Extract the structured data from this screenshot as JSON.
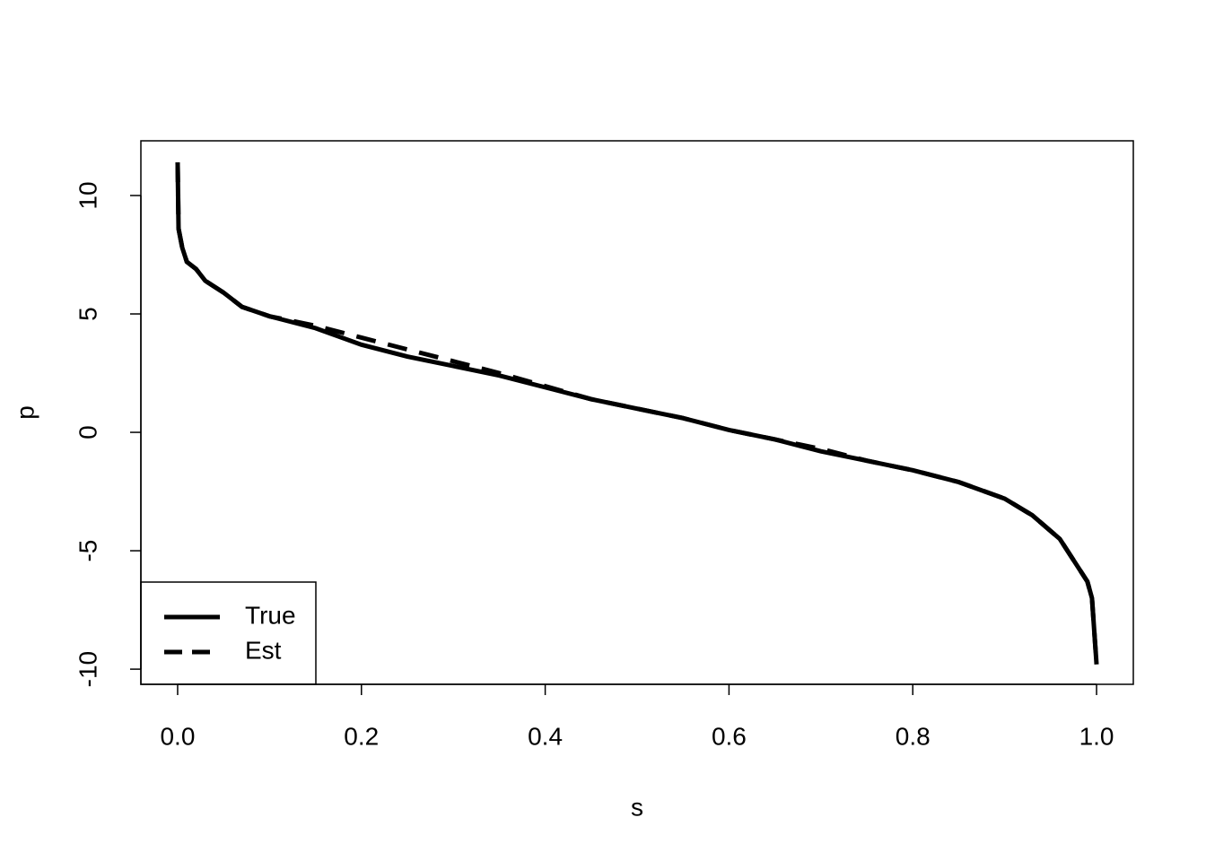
{
  "chart_data": {
    "type": "line",
    "xlabel": "s",
    "ylabel": "p",
    "x": [
      0,
      0.001,
      0.005,
      0.01,
      0.02,
      0.03,
      0.05,
      0.07,
      0.1,
      0.15,
      0.2,
      0.25,
      0.3,
      0.35,
      0.4,
      0.45,
      0.5,
      0.55,
      0.6,
      0.65,
      0.7,
      0.75,
      0.8,
      0.85,
      0.9,
      0.93,
      0.96,
      0.98,
      0.99,
      0.995,
      1.0
    ],
    "series": [
      {
        "name": "True",
        "color": "#000000",
        "dash": "solid",
        "values": [
          11.4,
          8.6,
          7.8,
          7.2,
          6.9,
          6.4,
          5.9,
          5.3,
          4.9,
          4.4,
          3.7,
          3.2,
          2.8,
          2.4,
          1.9,
          1.4,
          1.0,
          0.6,
          0.1,
          -0.3,
          -0.8,
          -1.2,
          -1.6,
          -2.1,
          -2.8,
          -3.5,
          -4.5,
          -5.7,
          -6.3,
          -7.0,
          -9.8
        ]
      },
      {
        "name": "Est",
        "color": "#000000",
        "dash": "dashed",
        "values": [
          11.4,
          8.6,
          7.8,
          7.2,
          6.9,
          6.4,
          5.9,
          5.3,
          4.9,
          4.5,
          4.0,
          3.5,
          3.0,
          2.5,
          1.95,
          1.4,
          1.0,
          0.6,
          0.1,
          -0.3,
          -0.7,
          -1.2,
          -1.6,
          -2.1,
          -2.8,
          -3.5,
          -4.5,
          -5.7,
          -6.3,
          -7.0,
          -9.8
        ]
      }
    ],
    "xlim": [
      -0.04,
      1.04
    ],
    "ylim": [
      -10.64,
      12.31
    ],
    "xticks": [
      {
        "value": 0,
        "label": "0.0"
      },
      0.2,
      0.4,
      0.6,
      0.8,
      {
        "value": 1,
        "label": "1.0"
      }
    ],
    "yticks": [
      -10,
      -5,
      0,
      5,
      10
    ],
    "legend": "bottomleft",
    "grid": false
  }
}
